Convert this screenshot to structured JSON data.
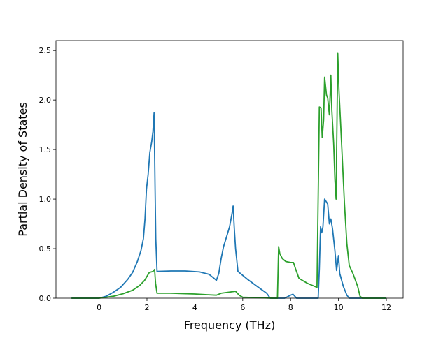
{
  "chart_data": {
    "type": "line",
    "title": "",
    "xlabel": "Frequency (THz)",
    "ylabel": "Partial Density of States",
    "xlim": [
      -1.8,
      12.7
    ],
    "ylim": [
      0,
      2.6
    ],
    "xticks": [
      0,
      2,
      4,
      6,
      8,
      10,
      12
    ],
    "xtick_labels": [
      "0",
      "2",
      "4",
      "6",
      "8",
      "10",
      "12"
    ],
    "yticks": [
      0.0,
      0.5,
      1.0,
      1.5,
      2.0,
      2.5
    ],
    "ytick_labels": [
      "0.0",
      "0.5",
      "1.0",
      "1.5",
      "2.0",
      "2.5"
    ],
    "grid": false,
    "series": [
      {
        "color": "#1f77b4",
        "points": [
          [
            -1.15,
            0.0
          ],
          [
            0.0,
            0.0
          ],
          [
            0.3,
            0.02
          ],
          [
            0.6,
            0.06
          ],
          [
            0.9,
            0.11
          ],
          [
            1.2,
            0.19
          ],
          [
            1.4,
            0.26
          ],
          [
            1.6,
            0.37
          ],
          [
            1.75,
            0.48
          ],
          [
            1.85,
            0.6
          ],
          [
            1.92,
            0.8
          ],
          [
            1.98,
            1.1
          ],
          [
            2.05,
            1.25
          ],
          [
            2.12,
            1.47
          ],
          [
            2.2,
            1.58
          ],
          [
            2.25,
            1.68
          ],
          [
            2.3,
            1.87
          ],
          [
            2.34,
            1.1
          ],
          [
            2.37,
            0.6
          ],
          [
            2.42,
            0.27
          ],
          [
            3.0,
            0.275
          ],
          [
            3.6,
            0.275
          ],
          [
            4.2,
            0.265
          ],
          [
            4.6,
            0.24
          ],
          [
            4.8,
            0.2
          ],
          [
            4.9,
            0.18
          ],
          [
            5.0,
            0.25
          ],
          [
            5.1,
            0.4
          ],
          [
            5.2,
            0.52
          ],
          [
            5.35,
            0.64
          ],
          [
            5.45,
            0.72
          ],
          [
            5.55,
            0.85
          ],
          [
            5.6,
            0.93
          ],
          [
            5.65,
            0.7
          ],
          [
            5.7,
            0.5
          ],
          [
            5.8,
            0.27
          ],
          [
            6.2,
            0.19
          ],
          [
            6.6,
            0.12
          ],
          [
            7.0,
            0.05
          ],
          [
            7.15,
            0.0
          ],
          [
            7.75,
            0.0
          ],
          [
            8.0,
            0.03
          ],
          [
            8.1,
            0.04
          ],
          [
            8.25,
            0.0
          ],
          [
            9.15,
            0.0
          ],
          [
            9.2,
            0.3
          ],
          [
            9.25,
            0.72
          ],
          [
            9.3,
            0.66
          ],
          [
            9.35,
            0.72
          ],
          [
            9.42,
            1.0
          ],
          [
            9.5,
            0.97
          ],
          [
            9.55,
            0.95
          ],
          [
            9.62,
            0.75
          ],
          [
            9.68,
            0.8
          ],
          [
            9.75,
            0.7
          ],
          [
            9.85,
            0.48
          ],
          [
            9.92,
            0.28
          ],
          [
            10.0,
            0.43
          ],
          [
            10.05,
            0.25
          ],
          [
            10.2,
            0.12
          ],
          [
            10.35,
            0.03
          ],
          [
            10.45,
            0.0
          ],
          [
            12.0,
            0.0
          ]
        ]
      },
      {
        "color": "#2ca02c",
        "points": [
          [
            -1.15,
            0.0
          ],
          [
            0.0,
            0.0
          ],
          [
            0.3,
            0.01
          ],
          [
            0.6,
            0.02
          ],
          [
            1.0,
            0.045
          ],
          [
            1.4,
            0.08
          ],
          [
            1.7,
            0.13
          ],
          [
            1.9,
            0.18
          ],
          [
            2.0,
            0.22
          ],
          [
            2.1,
            0.26
          ],
          [
            2.25,
            0.27
          ],
          [
            2.32,
            0.29
          ],
          [
            2.36,
            0.15
          ],
          [
            2.42,
            0.05
          ],
          [
            3.0,
            0.05
          ],
          [
            4.0,
            0.042
          ],
          [
            4.5,
            0.035
          ],
          [
            4.9,
            0.03
          ],
          [
            5.1,
            0.05
          ],
          [
            5.4,
            0.06
          ],
          [
            5.7,
            0.07
          ],
          [
            5.85,
            0.03
          ],
          [
            6.0,
            0.01
          ],
          [
            7.3,
            0.0
          ],
          [
            7.45,
            0.0
          ],
          [
            7.5,
            0.52
          ],
          [
            7.55,
            0.45
          ],
          [
            7.65,
            0.4
          ],
          [
            7.8,
            0.37
          ],
          [
            8.0,
            0.36
          ],
          [
            8.12,
            0.36
          ],
          [
            8.2,
            0.3
          ],
          [
            8.35,
            0.2
          ],
          [
            8.7,
            0.15
          ],
          [
            9.1,
            0.11
          ],
          [
            9.2,
            1.93
          ],
          [
            9.27,
            1.92
          ],
          [
            9.32,
            1.62
          ],
          [
            9.38,
            1.8
          ],
          [
            9.42,
            2.23
          ],
          [
            9.5,
            2.05
          ],
          [
            9.55,
            2.02
          ],
          [
            9.62,
            1.85
          ],
          [
            9.68,
            2.25
          ],
          [
            9.72,
            1.9
          ],
          [
            9.8,
            1.55
          ],
          [
            9.85,
            1.2
          ],
          [
            9.9,
            1.0
          ],
          [
            9.97,
            2.47
          ],
          [
            10.02,
            2.1
          ],
          [
            10.08,
            1.8
          ],
          [
            10.15,
            1.45
          ],
          [
            10.25,
            0.95
          ],
          [
            10.35,
            0.55
          ],
          [
            10.45,
            0.33
          ],
          [
            10.6,
            0.25
          ],
          [
            10.8,
            0.12
          ],
          [
            10.9,
            0.02
          ],
          [
            11.0,
            0.0
          ],
          [
            12.0,
            0.0
          ]
        ]
      }
    ]
  }
}
